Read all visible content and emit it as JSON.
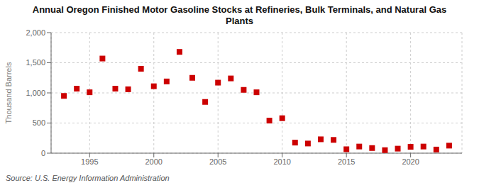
{
  "chart_data": {
    "type": "scatter",
    "title": "Annual Oregon Finished Motor Gasoline Stocks at Refineries, Bulk Terminals, and Natural Gas\nPlants",
    "y_label": "Thousand Barrels",
    "source": "Source: U.S. Energy Information Administration",
    "x": [
      1993,
      1994,
      1995,
      1996,
      1997,
      1998,
      1999,
      2000,
      2001,
      2002,
      2003,
      2004,
      2005,
      2006,
      2007,
      2008,
      2009,
      2010,
      2011,
      2012,
      2013,
      2014,
      2015,
      2016,
      2017,
      2018,
      2019,
      2020,
      2021,
      2022,
      2023
    ],
    "values": [
      950,
      1070,
      1010,
      1570,
      1070,
      1060,
      1400,
      1110,
      1190,
      1680,
      1250,
      850,
      1170,
      1240,
      1050,
      1010,
      540,
      580,
      175,
      160,
      230,
      220,
      65,
      110,
      85,
      50,
      75,
      105,
      110,
      60,
      125
    ],
    "color": "#cc0000",
    "marker": "square",
    "xlim": [
      1992,
      2024
    ],
    "xticks": [
      1995,
      2000,
      2005,
      2010,
      2015,
      2020
    ],
    "ylim": [
      0,
      2000
    ],
    "yticks": [
      0,
      500,
      {
        "value": 1000,
        "label": "1,000"
      },
      {
        "value": 1500,
        "label": "1,500"
      },
      {
        "value": 2000,
        "label": "2,000"
      }
    ],
    "grid": true
  }
}
